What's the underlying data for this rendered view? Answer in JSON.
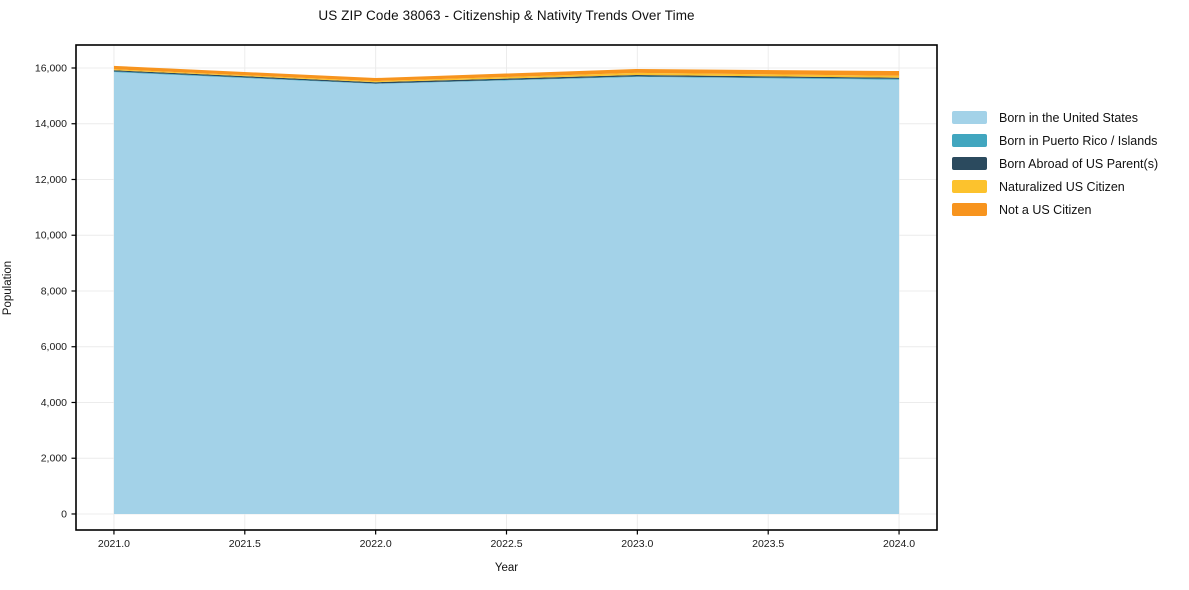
{
  "page": {
    "background": "#ffffff"
  },
  "chart_data": {
    "type": "area",
    "stacked": true,
    "title": "US ZIP Code 38063 - Citizenship & Nativity Trends Over Time",
    "xlabel": "Year",
    "ylabel": "Population",
    "x": [
      2021,
      2022,
      2023,
      2024
    ],
    "series": [
      {
        "name": "Born in the United States",
        "color": "#A3D2E8",
        "values": [
          15850,
          15430,
          15680,
          15580
        ]
      },
      {
        "name": "Born in Puerto Rico / Islands",
        "color": "#41A6BF",
        "values": [
          30,
          15,
          20,
          30
        ]
      },
      {
        "name": "Born Abroad of US Parent(s)",
        "color": "#2B4A5E",
        "values": [
          40,
          45,
          50,
          40
        ]
      },
      {
        "name": "Naturalized US Citizen",
        "color": "#FCC22D",
        "values": [
          35,
          40,
          75,
          70
        ]
      },
      {
        "name": "Not a US Citizen",
        "color": "#F7941E",
        "values": [
          120,
          110,
          140,
          170
        ]
      }
    ],
    "totals": [
      16075,
      15640,
      15965,
      15890
    ],
    "xlim": [
      2020.855,
      2024.145
    ],
    "ylim": [
      -575,
      16825
    ],
    "x_ticks": [
      2021.0,
      2021.5,
      2022.0,
      2022.5,
      2023.0,
      2023.5,
      2024.0
    ],
    "x_tick_labels": [
      "2021.0",
      "2021.5",
      "2022.0",
      "2022.5",
      "2023.0",
      "2023.5",
      "2024.0"
    ],
    "y_ticks": [
      0,
      2000,
      4000,
      6000,
      8000,
      10000,
      12000,
      14000,
      16000
    ],
    "y_tick_labels": [
      "0",
      "2,000",
      "4,000",
      "6,000",
      "8,000",
      "10,000",
      "12,000",
      "14,000",
      "16,000"
    ],
    "grid": true,
    "grid_color": "#ececec",
    "spine_color": "#000000",
    "tick_label_color": "#1a1a1a",
    "legend_position": "right"
  }
}
